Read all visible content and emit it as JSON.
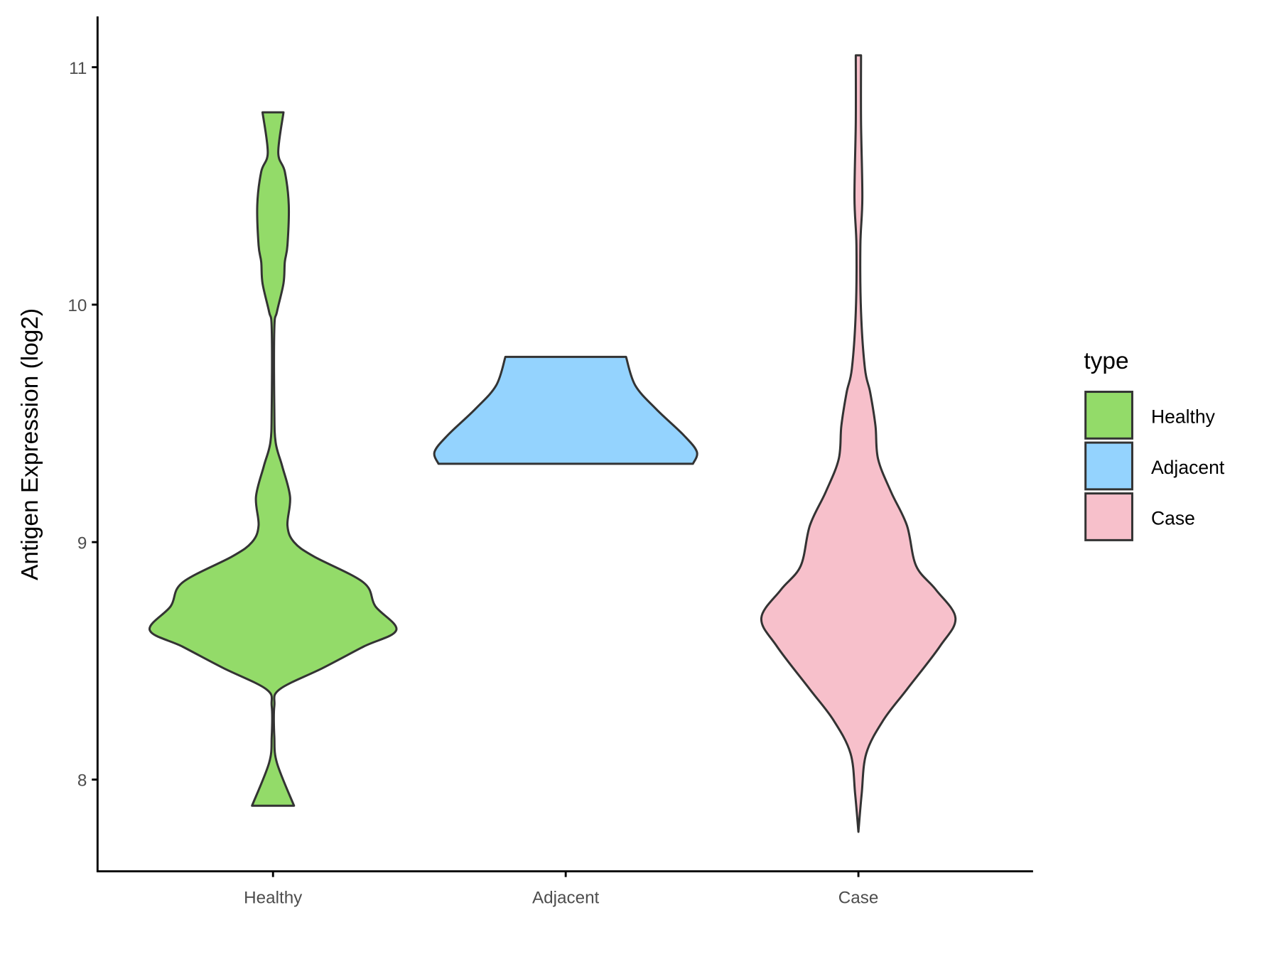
{
  "chart_data": {
    "type": "violin",
    "title": "",
    "xlabel": "",
    "ylabel": "Antigen Expression (log2)",
    "ylim": [
      7.62,
      11.22
    ],
    "yticks": [
      8,
      9,
      10,
      11
    ],
    "ytick_labels": [
      "8",
      "9",
      "10",
      "11"
    ],
    "categories": [
      "Healthy",
      "Adjacent",
      "Case"
    ],
    "legend": {
      "title": "type",
      "placement": "right",
      "entries": [
        "Healthy",
        "Adjacent",
        "Case"
      ]
    },
    "colors": {
      "Healthy": "#93DB69",
      "Adjacent": "#94D3FE",
      "Case": "#F7C0CB",
      "outline": "#333333"
    },
    "series": [
      {
        "name": "Healthy",
        "min": 7.89,
        "max": 10.81,
        "profile": [
          [
            10.81,
            0.08
          ],
          [
            10.64,
            0.04
          ],
          [
            10.56,
            0.09
          ],
          [
            10.42,
            0.12
          ],
          [
            10.25,
            0.11
          ],
          [
            10.18,
            0.09
          ],
          [
            10.09,
            0.08
          ],
          [
            9.97,
            0.03
          ],
          [
            9.9,
            0.01
          ],
          [
            9.56,
            0.01
          ],
          [
            9.42,
            0.02
          ],
          [
            9.32,
            0.07
          ],
          [
            9.19,
            0.13
          ],
          [
            9.07,
            0.11
          ],
          [
            9.0,
            0.16
          ],
          [
            8.94,
            0.31
          ],
          [
            8.83,
            0.69
          ],
          [
            8.73,
            0.78
          ],
          [
            8.63,
            0.94
          ],
          [
            8.56,
            0.69
          ],
          [
            8.47,
            0.38
          ],
          [
            8.38,
            0.05
          ],
          [
            8.31,
            0.01
          ],
          [
            8.18,
            0.01
          ],
          [
            8.07,
            0.03
          ],
          [
            7.89,
            0.16
          ]
        ]
      },
      {
        "name": "Adjacent",
        "min": 9.33,
        "max": 9.78,
        "profile": [
          [
            9.78,
            0.46
          ],
          [
            9.66,
            0.53
          ],
          [
            9.56,
            0.69
          ],
          [
            9.45,
            0.9
          ],
          [
            9.38,
            1.0
          ],
          [
            9.33,
            0.97
          ]
        ]
      },
      {
        "name": "Case",
        "min": 7.78,
        "max": 11.05,
        "profile": [
          [
            11.05,
            0.02
          ],
          [
            10.77,
            0.02
          ],
          [
            10.45,
            0.03
          ],
          [
            10.25,
            0.015
          ],
          [
            9.97,
            0.02
          ],
          [
            9.73,
            0.05
          ],
          [
            9.63,
            0.09
          ],
          [
            9.49,
            0.13
          ],
          [
            9.35,
            0.15
          ],
          [
            9.21,
            0.25
          ],
          [
            9.07,
            0.37
          ],
          [
            8.9,
            0.44
          ],
          [
            8.8,
            0.59
          ],
          [
            8.68,
            0.74
          ],
          [
            8.56,
            0.62
          ],
          [
            8.38,
            0.37
          ],
          [
            8.25,
            0.19
          ],
          [
            8.11,
            0.06
          ],
          [
            7.94,
            0.025
          ],
          [
            7.78,
            0.0
          ]
        ]
      }
    ]
  }
}
